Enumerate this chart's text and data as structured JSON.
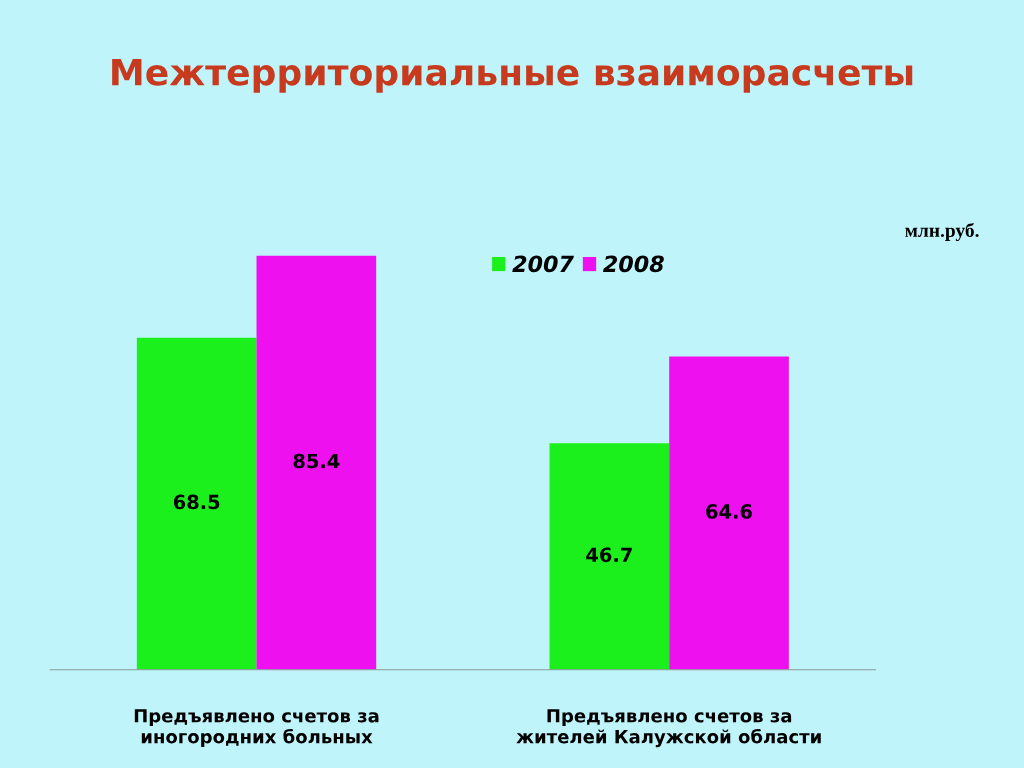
{
  "chart_data": {
    "type": "bar",
    "title": "Межтерриториальные взаиморасчеты",
    "categories": [
      "Предъявлено счетов за\nиногородних больных",
      "Предъявлено счетов за\nжителей Калужской области"
    ],
    "series": [
      {
        "name": "2007",
        "color": "#1cf01c",
        "values": [
          68.5,
          46.7
        ]
      },
      {
        "name": "2008",
        "color": "#ee10ee",
        "values": [
          85.4,
          64.6
        ]
      }
    ],
    "data_labels": true,
    "legend": "top",
    "annotations": [
      "млн.руб."
    ]
  }
}
